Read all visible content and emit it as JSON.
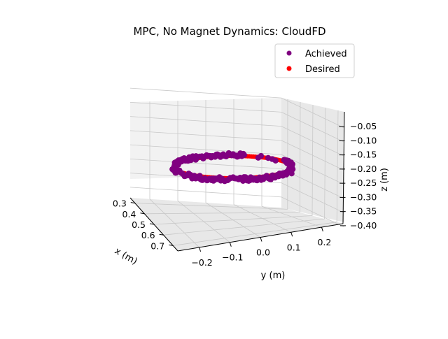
{
  "chart_data": {
    "type": "scatter",
    "projection": "3d",
    "title": "MPC, No Magnet Dynamics: CloudFD",
    "xlabel": "x (m)",
    "ylabel": "y (m)",
    "zlabel": "z (m)",
    "x_ticks": [
      "0.3",
      "0.4",
      "0.5",
      "0.6",
      "0.7"
    ],
    "y_ticks": [
      "−0.2",
      "−0.1",
      "0.0",
      "0.1",
      "0.2"
    ],
    "z_ticks": [
      "−0.05",
      "−0.10",
      "−0.15",
      "−0.20",
      "−0.25",
      "−0.30",
      "−0.35",
      "−0.40"
    ],
    "xlim": [
      0.25,
      0.75
    ],
    "ylim": [
      -0.27,
      0.27
    ],
    "zlim": [
      -0.42,
      -0.03
    ],
    "grid": true,
    "legend_position": "top-right",
    "series": [
      {
        "name": "Achieved",
        "color": "#800080",
        "trajectory": "closed loop: center (0.5, 0.0, -0.20), radius 0.2 m in x-y, noisy"
      },
      {
        "name": "Desired",
        "color": "#ff0000",
        "trajectory": "circle: center (0.5, 0.0, -0.20), radius 0.2 m in x-y plane"
      }
    ]
  }
}
